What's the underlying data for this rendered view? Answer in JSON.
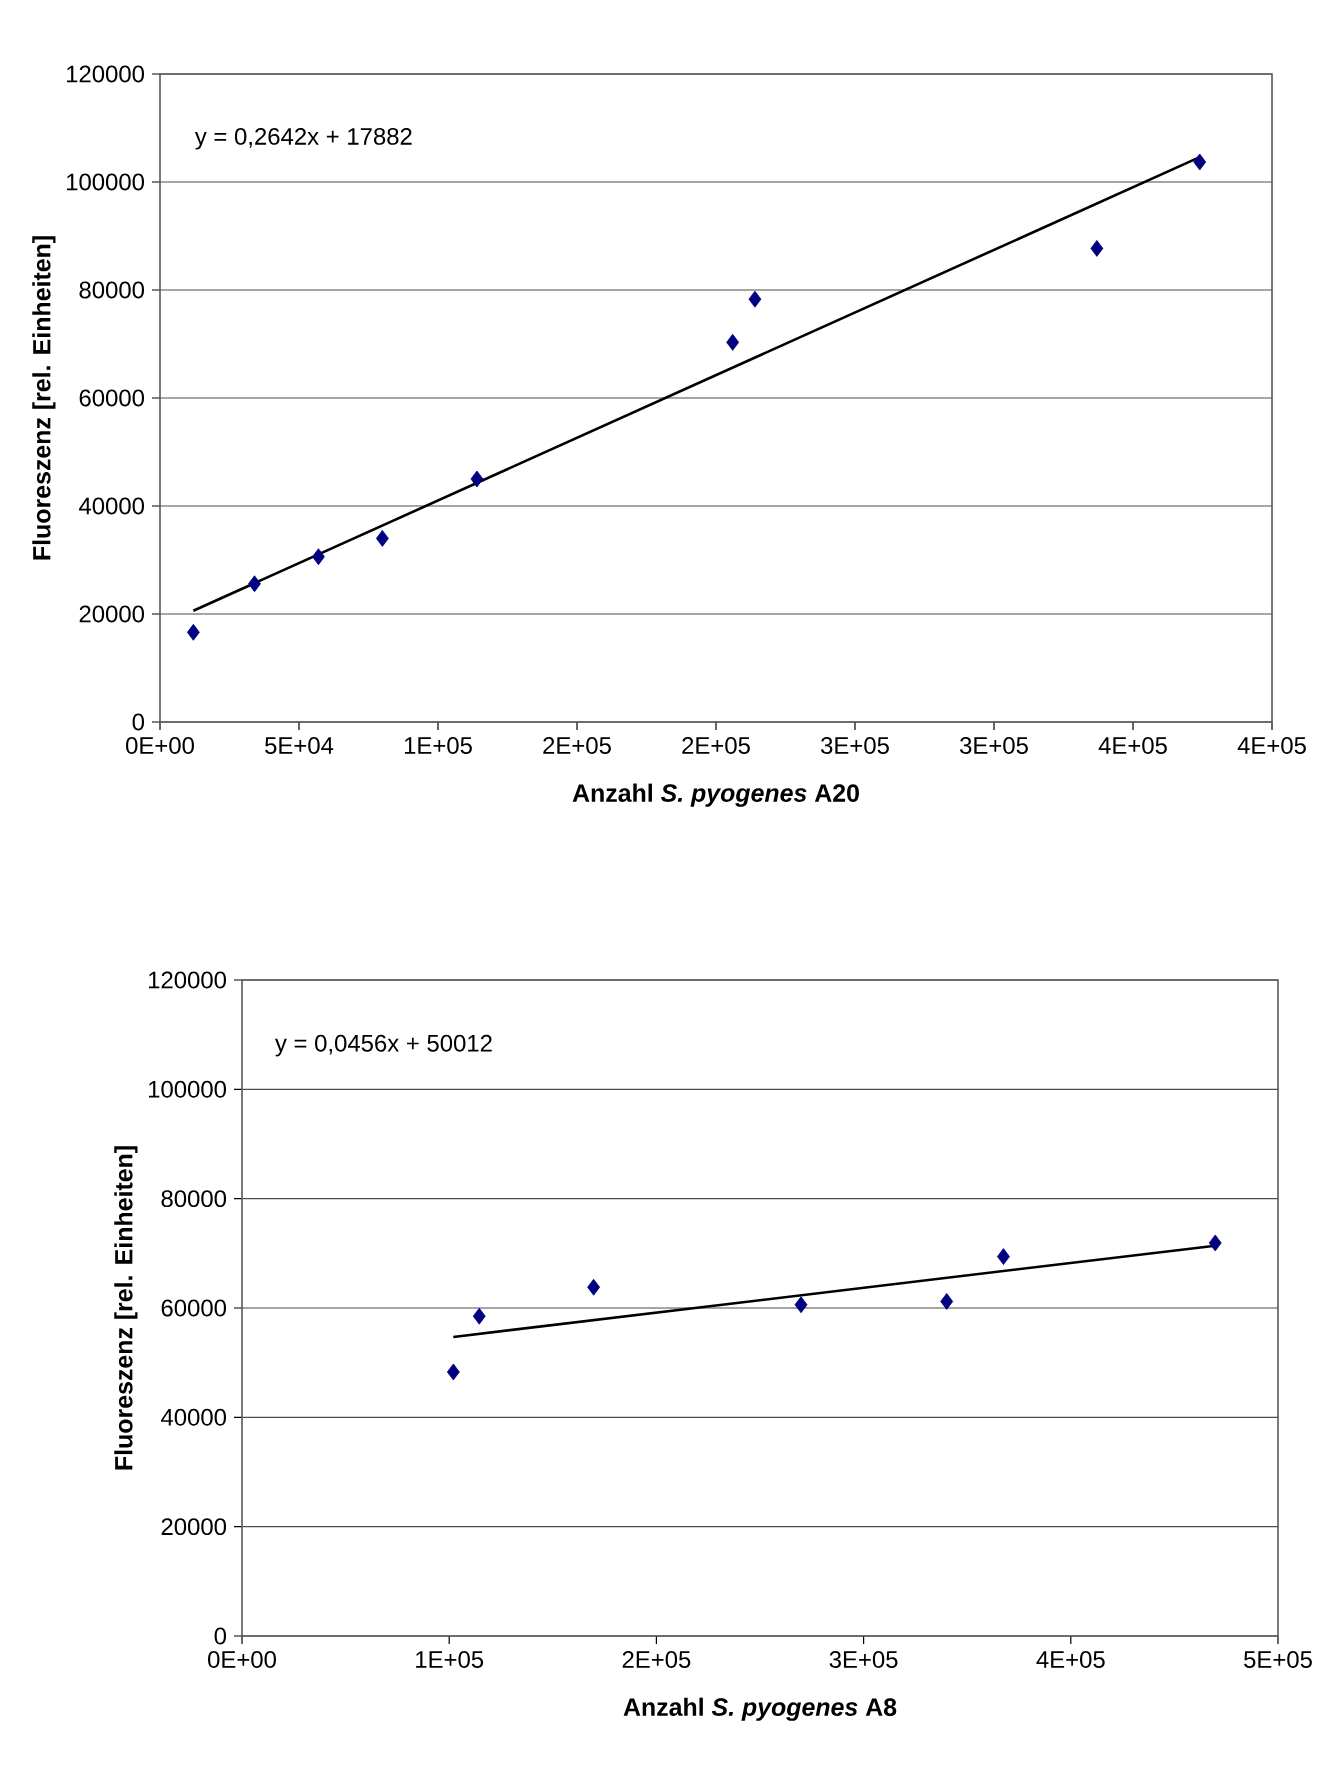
{
  "chart_data": [
    {
      "type": "scatter",
      "xlabel": "Anzahl *S. pyogenes* A20",
      "ylabel": "Fluoreszenz [rel. Einheiten]",
      "annotations": [
        "y = 0,2642x + 17882"
      ],
      "xlim": [
        0,
        400000
      ],
      "ylim": [
        0,
        120000
      ],
      "xticks": [
        {
          "value": 0,
          "label": "0E+00"
        },
        {
          "value": 50000,
          "label": "5E+04"
        },
        {
          "value": 100000,
          "label": "1E+05"
        },
        {
          "value": 150000,
          "label": "2E+05"
        },
        {
          "value": 200000,
          "label": "2E+05"
        },
        {
          "value": 250000,
          "label": "3E+05"
        },
        {
          "value": 300000,
          "label": "3E+05"
        },
        {
          "value": 350000,
          "label": "4E+05"
        },
        {
          "value": 400000,
          "label": "4E+05"
        }
      ],
      "yticks": [
        0,
        20000,
        40000,
        60000,
        80000,
        100000,
        120000
      ],
      "grid": "y",
      "series": [
        {
          "color": "#000080",
          "marker": "diamond",
          "x": [
            12000,
            34000,
            57000,
            80000,
            114000,
            206000,
            214000,
            337000,
            374000
          ],
          "values": [
            16600,
            25600,
            30600,
            34000,
            45000,
            70300,
            78300,
            87700,
            103700
          ]
        },
        {
          "type": "line",
          "color": "#000000",
          "marker": "none",
          "x": [
            12000,
            374000
          ],
          "values": [
            20600,
            104600
          ]
        }
      ]
    },
    {
      "type": "scatter",
      "xlabel": "Anzahl *S. pyogenes* A8",
      "ylabel": "Fluoreszenz [rel. Einheiten]",
      "annotations": [
        "y = 0,0456x + 50012"
      ],
      "xlim": [
        0,
        500000
      ],
      "ylim": [
        0,
        120000
      ],
      "xticks": [
        {
          "value": 0,
          "label": "0E+00"
        },
        {
          "value": 100000,
          "label": "1E+05"
        },
        {
          "value": 200000,
          "label": "2E+05"
        },
        {
          "value": 300000,
          "label": "3E+05"
        },
        {
          "value": 400000,
          "label": "4E+05"
        },
        {
          "value": 500000,
          "label": "5E+05"
        }
      ],
      "yticks": [
        0,
        20000,
        40000,
        60000,
        80000,
        100000,
        120000
      ],
      "grid": "y",
      "series": [
        {
          "color": "#000080",
          "marker": "diamond",
          "x": [
            102000,
            114500,
            169700,
            269800,
            340100,
            367500,
            469700
          ],
          "values": [
            48300,
            58500,
            63800,
            60600,
            61200,
            69400,
            71900
          ]
        },
        {
          "type": "line",
          "color": "#000000",
          "marker": "none",
          "x": [
            102000,
            469700
          ],
          "values": [
            54700,
            71400
          ]
        }
      ]
    }
  ]
}
